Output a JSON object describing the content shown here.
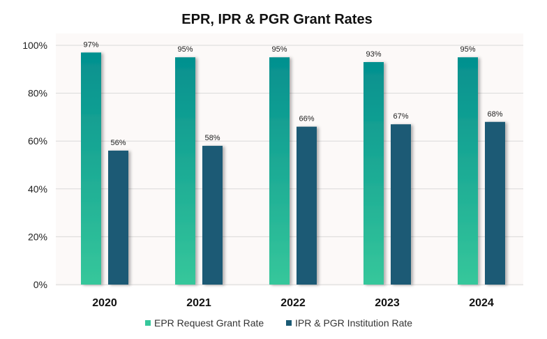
{
  "chart_data": {
    "type": "bar",
    "title": "EPR, IPR & PGR Grant Rates",
    "xlabel": "",
    "ylabel": "",
    "categories": [
      "2020",
      "2021",
      "2022",
      "2023",
      "2024"
    ],
    "series": [
      {
        "name": "EPR Request Grant Rate",
        "values": [
          97,
          95,
          95,
          93,
          95
        ],
        "labels": [
          "97%",
          "95%",
          "95%",
          "93%",
          "95%"
        ],
        "color_top": "#04908f",
        "color_bottom": "#36c79b"
      },
      {
        "name": "IPR & PGR Institution Rate",
        "values": [
          56,
          58,
          66,
          67,
          68
        ],
        "labels": [
          "56%",
          "58%",
          "66%",
          "67%",
          "68%"
        ],
        "color": "#1a5a74"
      }
    ],
    "ylim": [
      0,
      100
    ],
    "yticks": [
      0,
      20,
      40,
      60,
      80,
      100
    ],
    "ytick_labels": [
      "0%",
      "20%",
      "40%",
      "60%",
      "80%",
      "100%"
    ],
    "grid": true,
    "legend_position": "bottom"
  }
}
